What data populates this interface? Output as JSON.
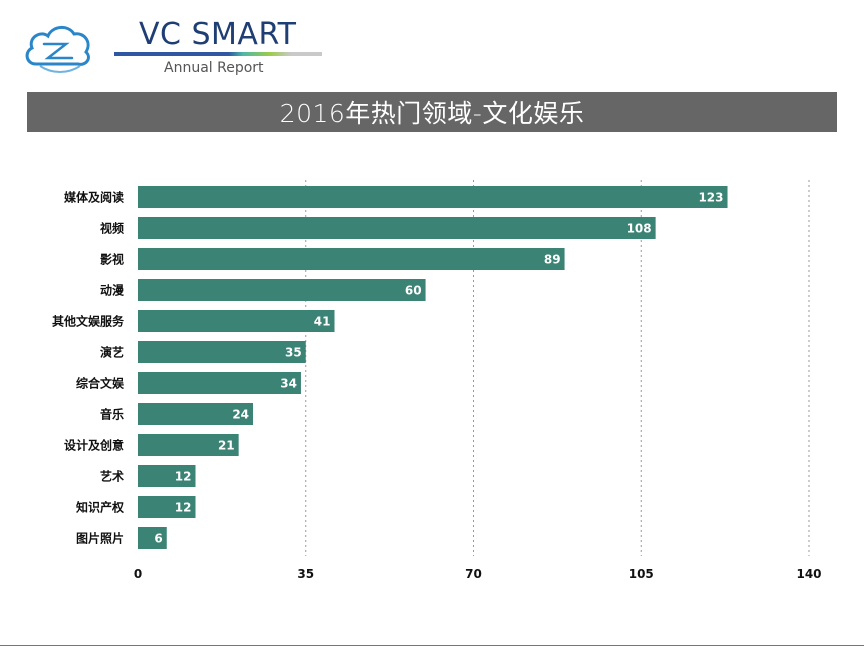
{
  "brand": {
    "name": "VC SMART",
    "subtitle": "Annual Report"
  },
  "banner": {
    "title": "2016年热门领域-文化娱乐"
  },
  "colors": {
    "bar": "#3b8374",
    "banner": "#666666",
    "brand_text": "#1f3e73",
    "logo": "#2a86c9"
  },
  "chart_data": {
    "type": "bar",
    "orientation": "horizontal",
    "title": "",
    "xlabel": "",
    "ylabel": "",
    "categories": [
      "媒体及阅读",
      "视频",
      "影视",
      "动漫",
      "其他文娱服务",
      "演艺",
      "综合文娱",
      "音乐",
      "设计及创意",
      "艺术",
      "知识产权",
      "图片照片"
    ],
    "values": [
      123,
      108,
      89,
      60,
      41,
      35,
      34,
      24,
      21,
      12,
      12,
      6
    ],
    "xlim": [
      0,
      140
    ],
    "xticks": [
      0,
      35,
      70,
      105,
      140
    ],
    "grid": "vertical dashed",
    "data_labels": "inside bar end"
  }
}
